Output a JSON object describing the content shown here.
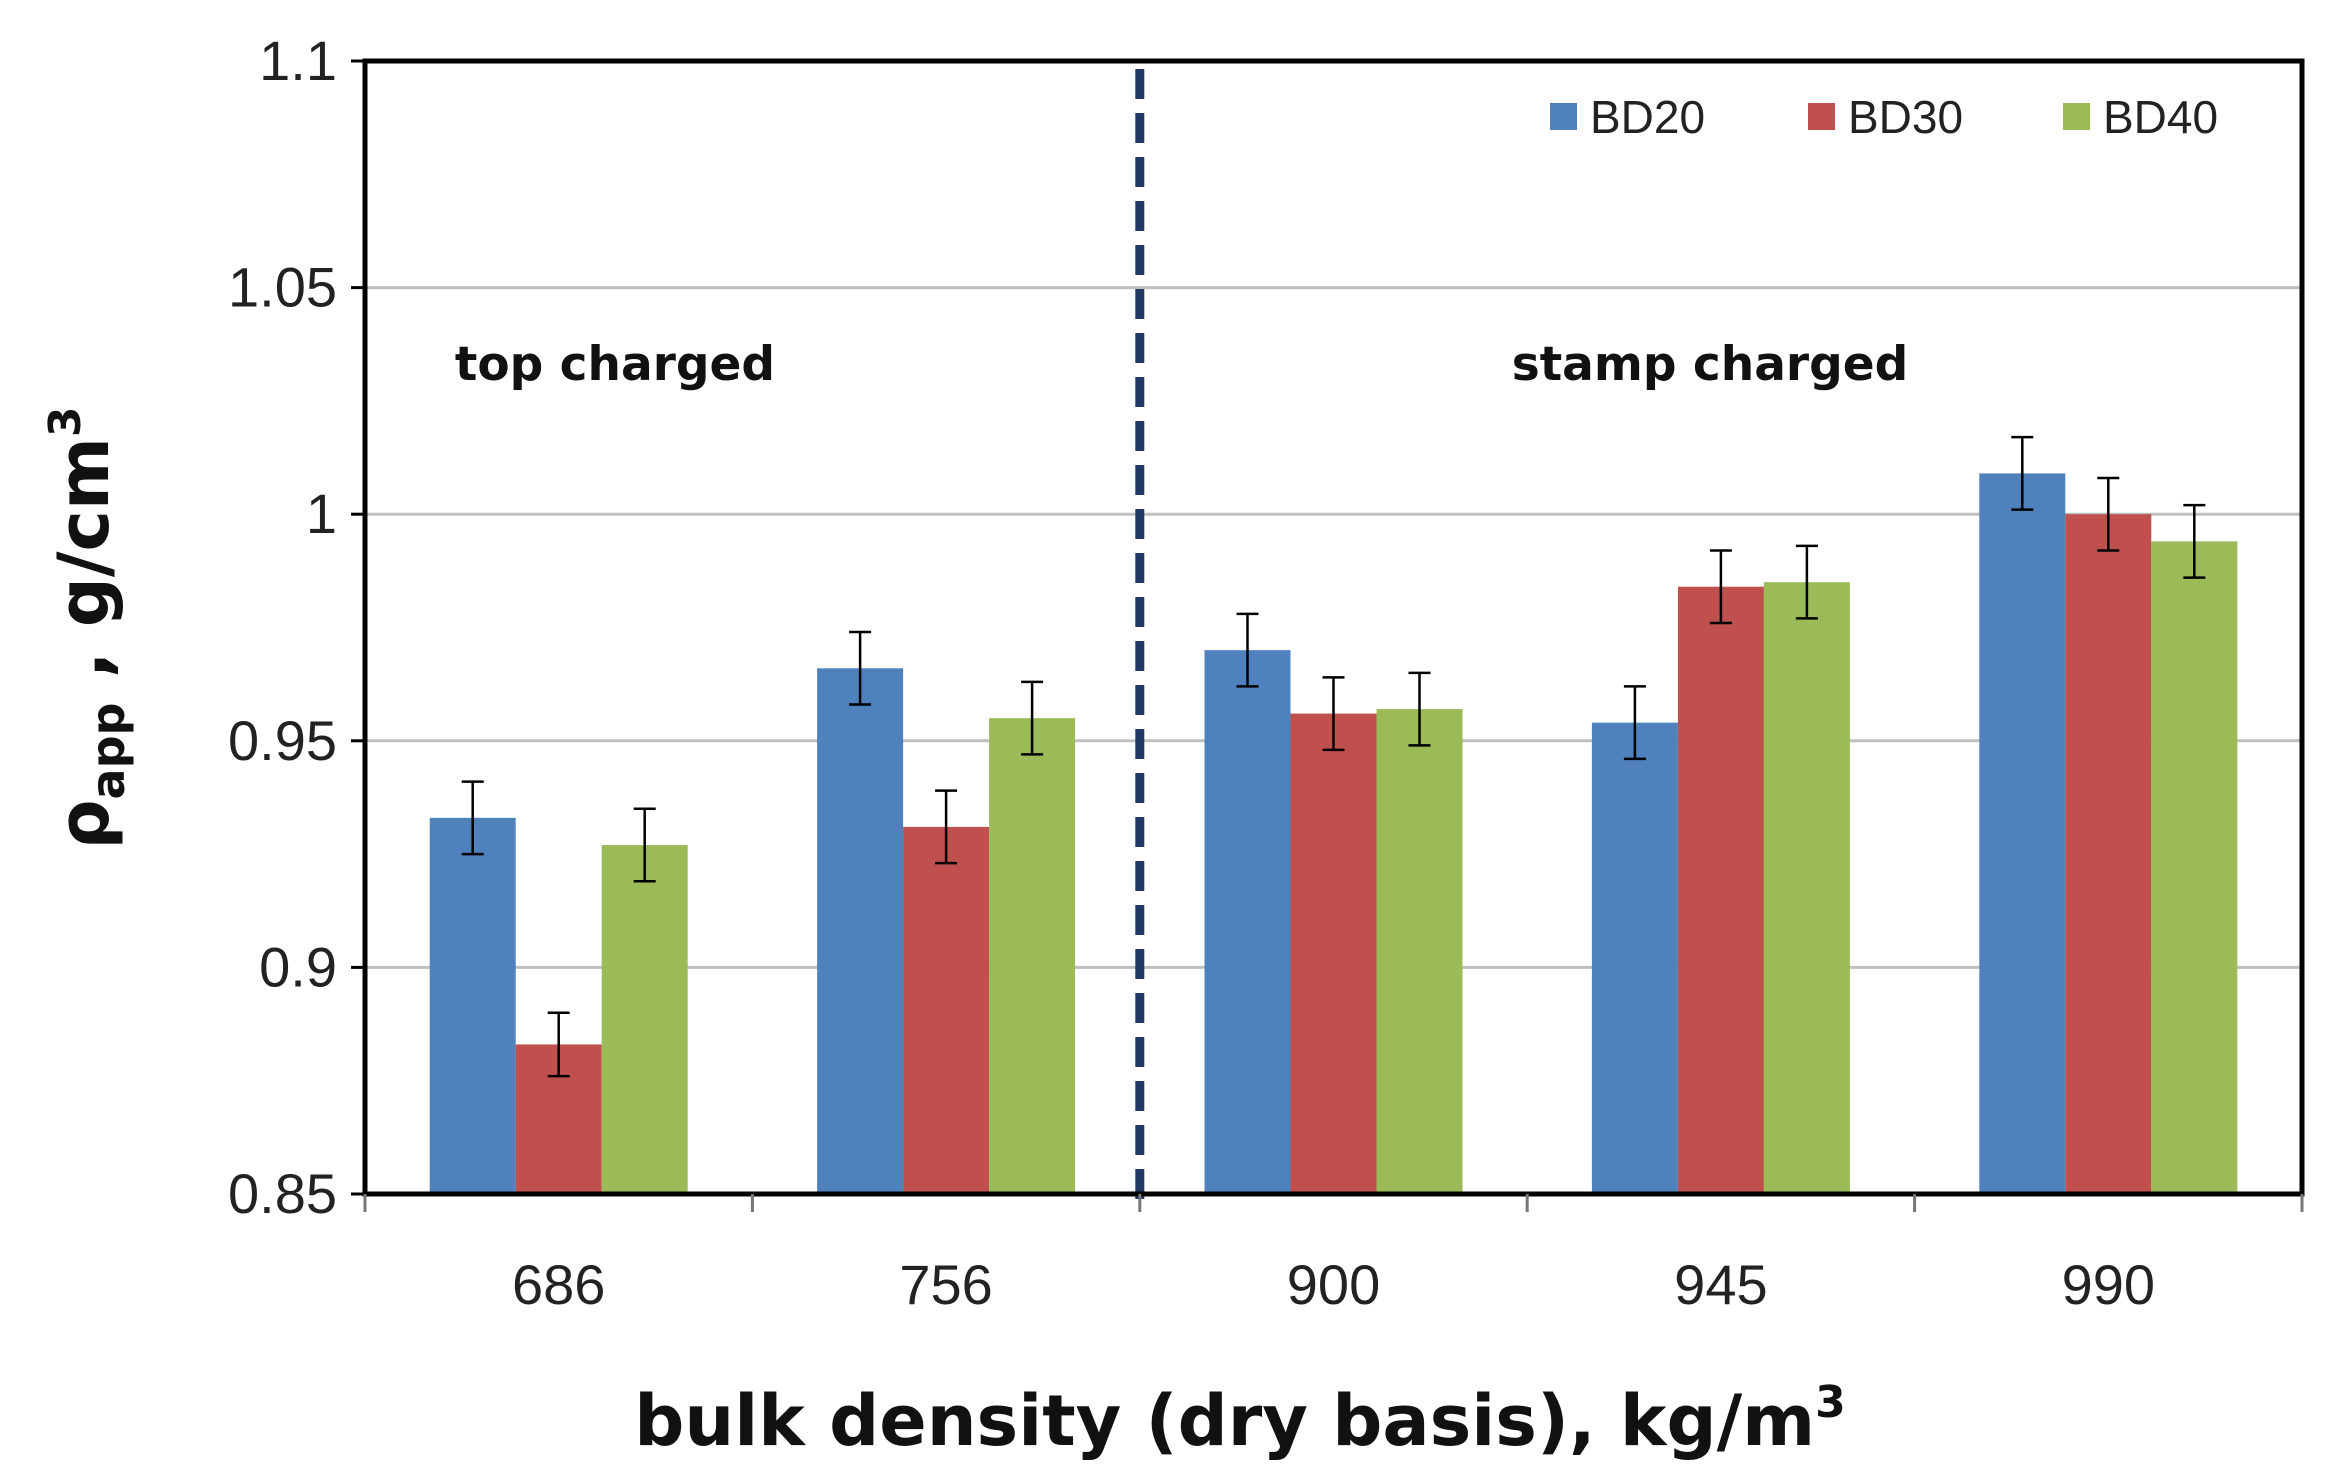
{
  "chart_data": {
    "type": "bar",
    "title": "",
    "xlabel": "bulk density (dry basis), kg/m",
    "xlabel_superscript": "3",
    "ylabel_symbol": "ρ",
    "ylabel_subscript": "app",
    "ylabel_unit": " , g/cm",
    "ylabel_superscript": "3",
    "categories": [
      "686",
      "756",
      "900",
      "945",
      "990"
    ],
    "ylim": [
      0.85,
      1.1
    ],
    "yticks": [
      0.85,
      0.9,
      0.95,
      1.0,
      1.05,
      1.1
    ],
    "ytick_labels": [
      "0.85",
      "0.9",
      "0.95",
      "1",
      "1.05",
      "1.1"
    ],
    "grid": true,
    "legend_position": "top-right",
    "series": [
      {
        "name": "BD20",
        "color": "#4F81BD",
        "values": [
          0.933,
          0.966,
          0.97,
          0.954,
          1.009
        ],
        "errors": [
          0.008,
          0.008,
          0.008,
          0.008,
          0.008
        ]
      },
      {
        "name": "BD30",
        "color": "#C0504D",
        "values": [
          0.883,
          0.931,
          0.956,
          0.984,
          1.0
        ],
        "errors": [
          0.007,
          0.008,
          0.008,
          0.008,
          0.008
        ]
      },
      {
        "name": "BD40",
        "color": "#9BBB59",
        "values": [
          0.927,
          0.955,
          0.957,
          0.985,
          0.994
        ],
        "errors": [
          0.008,
          0.008,
          0.008,
          0.008,
          0.008
        ]
      }
    ],
    "annotations": [
      {
        "text": "top charged",
        "region": "left"
      },
      {
        "text": "stamp charged",
        "region": "right"
      }
    ],
    "divider_between_categories": [
      "756",
      "900"
    ],
    "divider_style": "dashed"
  }
}
